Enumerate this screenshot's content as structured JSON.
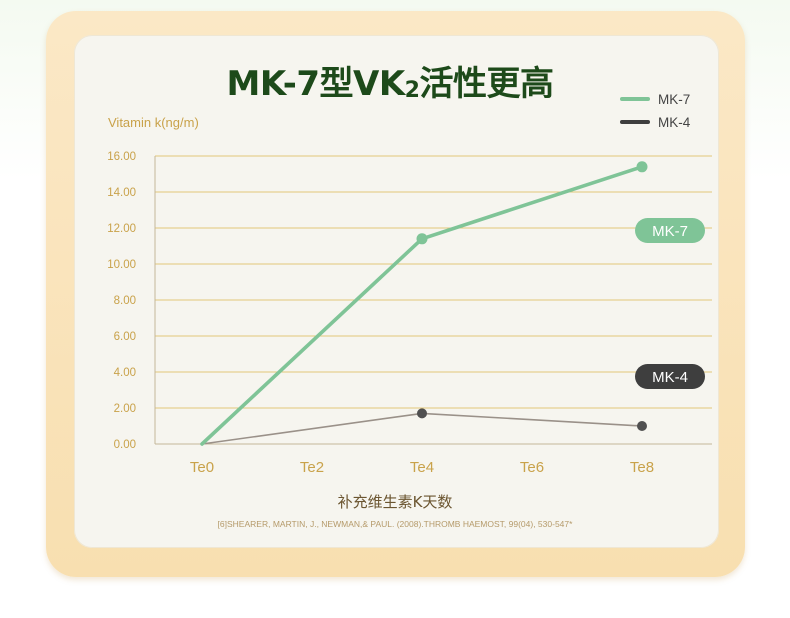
{
  "chart_data": {
    "type": "line",
    "title_main_a": "MK-7型VK",
    "title_sub": "2",
    "title_main_b": "活性更高",
    "ylabel": "Vitamin k(ng/m)",
    "xlabel": "补充维生素K天数",
    "categories": [
      "Te0",
      "Te2",
      "Te4",
      "Te6",
      "Te8"
    ],
    "y_ticks": [
      "0.00",
      "2.00",
      "4.00",
      "6.00",
      "8.00",
      "10.00",
      "12.00",
      "14.00",
      "16.00"
    ],
    "ylim": [
      0,
      16
    ],
    "legend_position": "top-right",
    "series": [
      {
        "name": "MK-7",
        "color": "#7fc497",
        "label_color": "#7fc497",
        "x": [
          0,
          4,
          8
        ],
        "values": [
          0.0,
          11.4,
          15.4
        ]
      },
      {
        "name": "MK-4",
        "color": "#9a9189",
        "point_color": "#505050",
        "label_color": "#3e3e3e",
        "x": [
          0,
          4,
          8
        ],
        "values": [
          0.0,
          1.7,
          1.0
        ]
      }
    ],
    "citation": "[6]SHEARER, MARTIN, J., NEWMAN,& PAUL. (2008).THROMB HAEMOST, 99(04), 530-547*",
    "grid": true
  }
}
